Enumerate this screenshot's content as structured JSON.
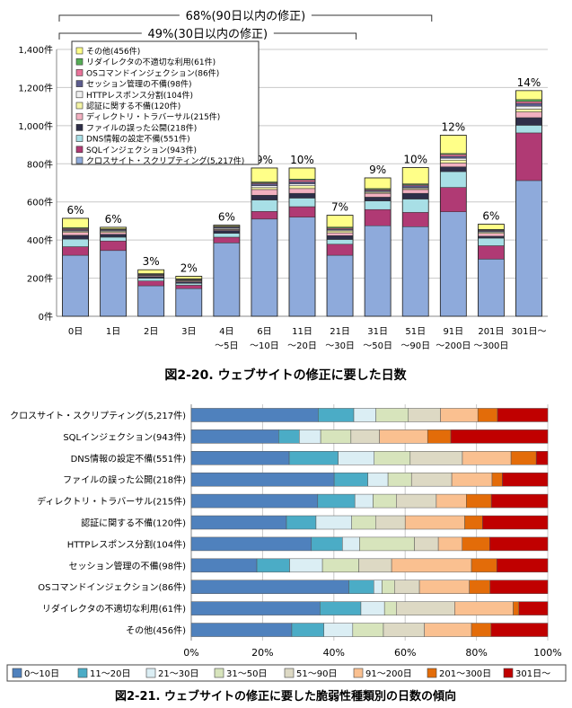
{
  "colors": {
    "cat": [
      "#8eaadb",
      "#b03a74",
      "#a8dfe6",
      "#2f2f49",
      "#f2b0c0",
      "#f5f5a6",
      "#f0f0f0",
      "#5c5c8e",
      "#e9739a",
      "#56ad56",
      "#ffff88",
      "#ffffff"
    ],
    "dur": [
      "#4f81bd",
      "#4bacc6",
      "#dbeef4",
      "#d7e4bc",
      "#ddd9c4",
      "#fac090",
      "#e36c09",
      "#c00000"
    ]
  },
  "chart_data": [
    {
      "type": "bar",
      "stacked": true,
      "ylim": [
        0,
        1400
      ],
      "yticks": [
        "0件",
        "200件",
        "400件",
        "600件",
        "800件",
        "1,000件",
        "1,200件",
        "1,400件"
      ],
      "categories": [
        "0日",
        "1日",
        "2日",
        "3日",
        "4日\n～5日",
        "6日\n～10日",
        "11日\n～20日",
        "21日\n～30日",
        "31日\n～50日",
        "51日\n～90日",
        "91日\n～200日",
        "201日\n～300日",
        "301日～"
      ],
      "totals": [
        514,
        467,
        244,
        210,
        478,
        778,
        778,
        530,
        726,
        780,
        950,
        483,
        1184
      ],
      "top_labels": [
        "6%",
        "6%",
        "3%",
        "2%",
        "6%",
        "9%",
        "10%",
        "7%",
        "9%",
        "10%",
        "12%",
        "6%",
        "14%"
      ],
      "series": [
        {
          "name": "クロスサイト・スクリプティング(5,217件)",
          "values": [
            320,
            345,
            160,
            145,
            385,
            510,
            520,
            320,
            475,
            470,
            548,
            300,
            712
          ]
        },
        {
          "name": "SQLインジェクション(943件)",
          "values": [
            45,
            50,
            25,
            18,
            30,
            40,
            55,
            58,
            85,
            75,
            128,
            70,
            250
          ]
        },
        {
          "name": "DNS情報の設定不備(551件)",
          "values": [
            40,
            20,
            15,
            10,
            20,
            60,
            45,
            25,
            45,
            70,
            83,
            40,
            40
          ]
        },
        {
          "name": "ファイルの誤った公開(218件)",
          "values": [
            20,
            15,
            8,
            8,
            15,
            25,
            25,
            20,
            20,
            30,
            25,
            10,
            40
          ]
        },
        {
          "name": "ディレクトリ・トラバーサル(215件)",
          "values": [
            15,
            10,
            5,
            5,
            5,
            30,
            25,
            15,
            20,
            20,
            20,
            15,
            30
          ]
        },
        {
          "name": "認証に関する不備(120件)",
          "values": [
            5,
            5,
            3,
            3,
            3,
            10,
            15,
            10,
            5,
            5,
            15,
            5,
            15
          ]
        },
        {
          "name": "HTTPレスポンス分割(104件)",
          "values": [
            5,
            5,
            3,
            3,
            5,
            10,
            10,
            5,
            5,
            5,
            10,
            5,
            15
          ]
        },
        {
          "name": "セッション管理の不備(98件)",
          "values": [
            5,
            5,
            2,
            2,
            5,
            10,
            10,
            5,
            5,
            10,
            10,
            5,
            15
          ]
        },
        {
          "name": "OSコマンドインジェクション(86件)",
          "values": [
            5,
            2,
            2,
            2,
            3,
            5,
            10,
            5,
            5,
            5,
            10,
            3,
            10
          ]
        },
        {
          "name": "リダイレクタの不適切な利用(61件)",
          "values": [
            5,
            2,
            1,
            1,
            2,
            5,
            5,
            5,
            5,
            5,
            5,
            3,
            10
          ]
        },
        {
          "name": "その他(456件)",
          "values": [
            49,
            8,
            20,
            13,
            5,
            73,
            58,
            62,
            56,
            85,
            96,
            27,
            47
          ]
        }
      ],
      "annotations": [
        {
          "text": "68%(90日以内の修正)",
          "from": "0日",
          "to": "51日～90日"
        },
        {
          "text": "49%(30日以内の修正)",
          "from": "0日",
          "to": "21日～30日"
        }
      ],
      "caption": "図2-20. ウェブサイトの修正に要した日数"
    },
    {
      "type": "bar",
      "orientation": "horizontal",
      "stacked_percent": true,
      "xticks": [
        "0%",
        "20%",
        "40%",
        "60%",
        "80%",
        "100%"
      ],
      "categories": [
        "クロスサイト・スクリプティング(5,217件)",
        "SQLインジェクション(943件)",
        "DNS情報の設定不備(551件)",
        "ファイルの誤った公開(218件)",
        "ディレクトリ・トラバーサル(215件)",
        "認証に関する不備(120件)",
        "HTTPレスポンス分割(104件)",
        "セッション管理の不備(98件)",
        "OSコマンドインジェクション(86件)",
        "リダイレクタの不適切な利用(61件)",
        "その他(456件)"
      ],
      "series": [
        {
          "name": "0～10日",
          "values": [
            35.6,
            24.5,
            27.2,
            39.0,
            35.4,
            26.7,
            33.7,
            18.4,
            44.2,
            36.1,
            28.2
          ]
        },
        {
          "name": "11～20日",
          "values": [
            10.0,
            5.8,
            13.6,
            9.2,
            10.4,
            8.3,
            8.7,
            9.2,
            7.0,
            11.5,
            9.0
          ]
        },
        {
          "name": "21～30日",
          "values": [
            6.2,
            6.0,
            10.0,
            5.5,
            5.1,
            10.0,
            4.8,
            9.2,
            2.3,
            6.6,
            8.1
          ]
        },
        {
          "name": "31～50日",
          "values": [
            9.1,
            8.5,
            10.0,
            6.4,
            6.5,
            6.7,
            15.4,
            10.2,
            3.5,
            3.3,
            8.6
          ]
        },
        {
          "name": "51～90日",
          "values": [
            9.0,
            8.0,
            14.5,
            11.0,
            11.2,
            8.3,
            6.7,
            9.2,
            7.0,
            16.4,
            11.5
          ]
        },
        {
          "name": "91～200日",
          "values": [
            10.5,
            13.5,
            13.5,
            11.0,
            8.4,
            16.7,
            6.7,
            22.4,
            14.0,
            16.4,
            13.2
          ]
        },
        {
          "name": "201～300日",
          "values": [
            5.5,
            6.5,
            7.0,
            2.8,
            7.0,
            5.0,
            7.7,
            7.1,
            5.8,
            1.6,
            5.5
          ]
        },
        {
          "name": "301日～",
          "values": [
            14.1,
            27.2,
            3.2,
            12.4,
            15.8,
            18.3,
            16.3,
            14.3,
            16.2,
            8.1,
            15.9
          ]
        }
      ],
      "caption": "図2-21. ウェブサイトの修正に要した脆弱性種類別の日数の傾向"
    }
  ]
}
